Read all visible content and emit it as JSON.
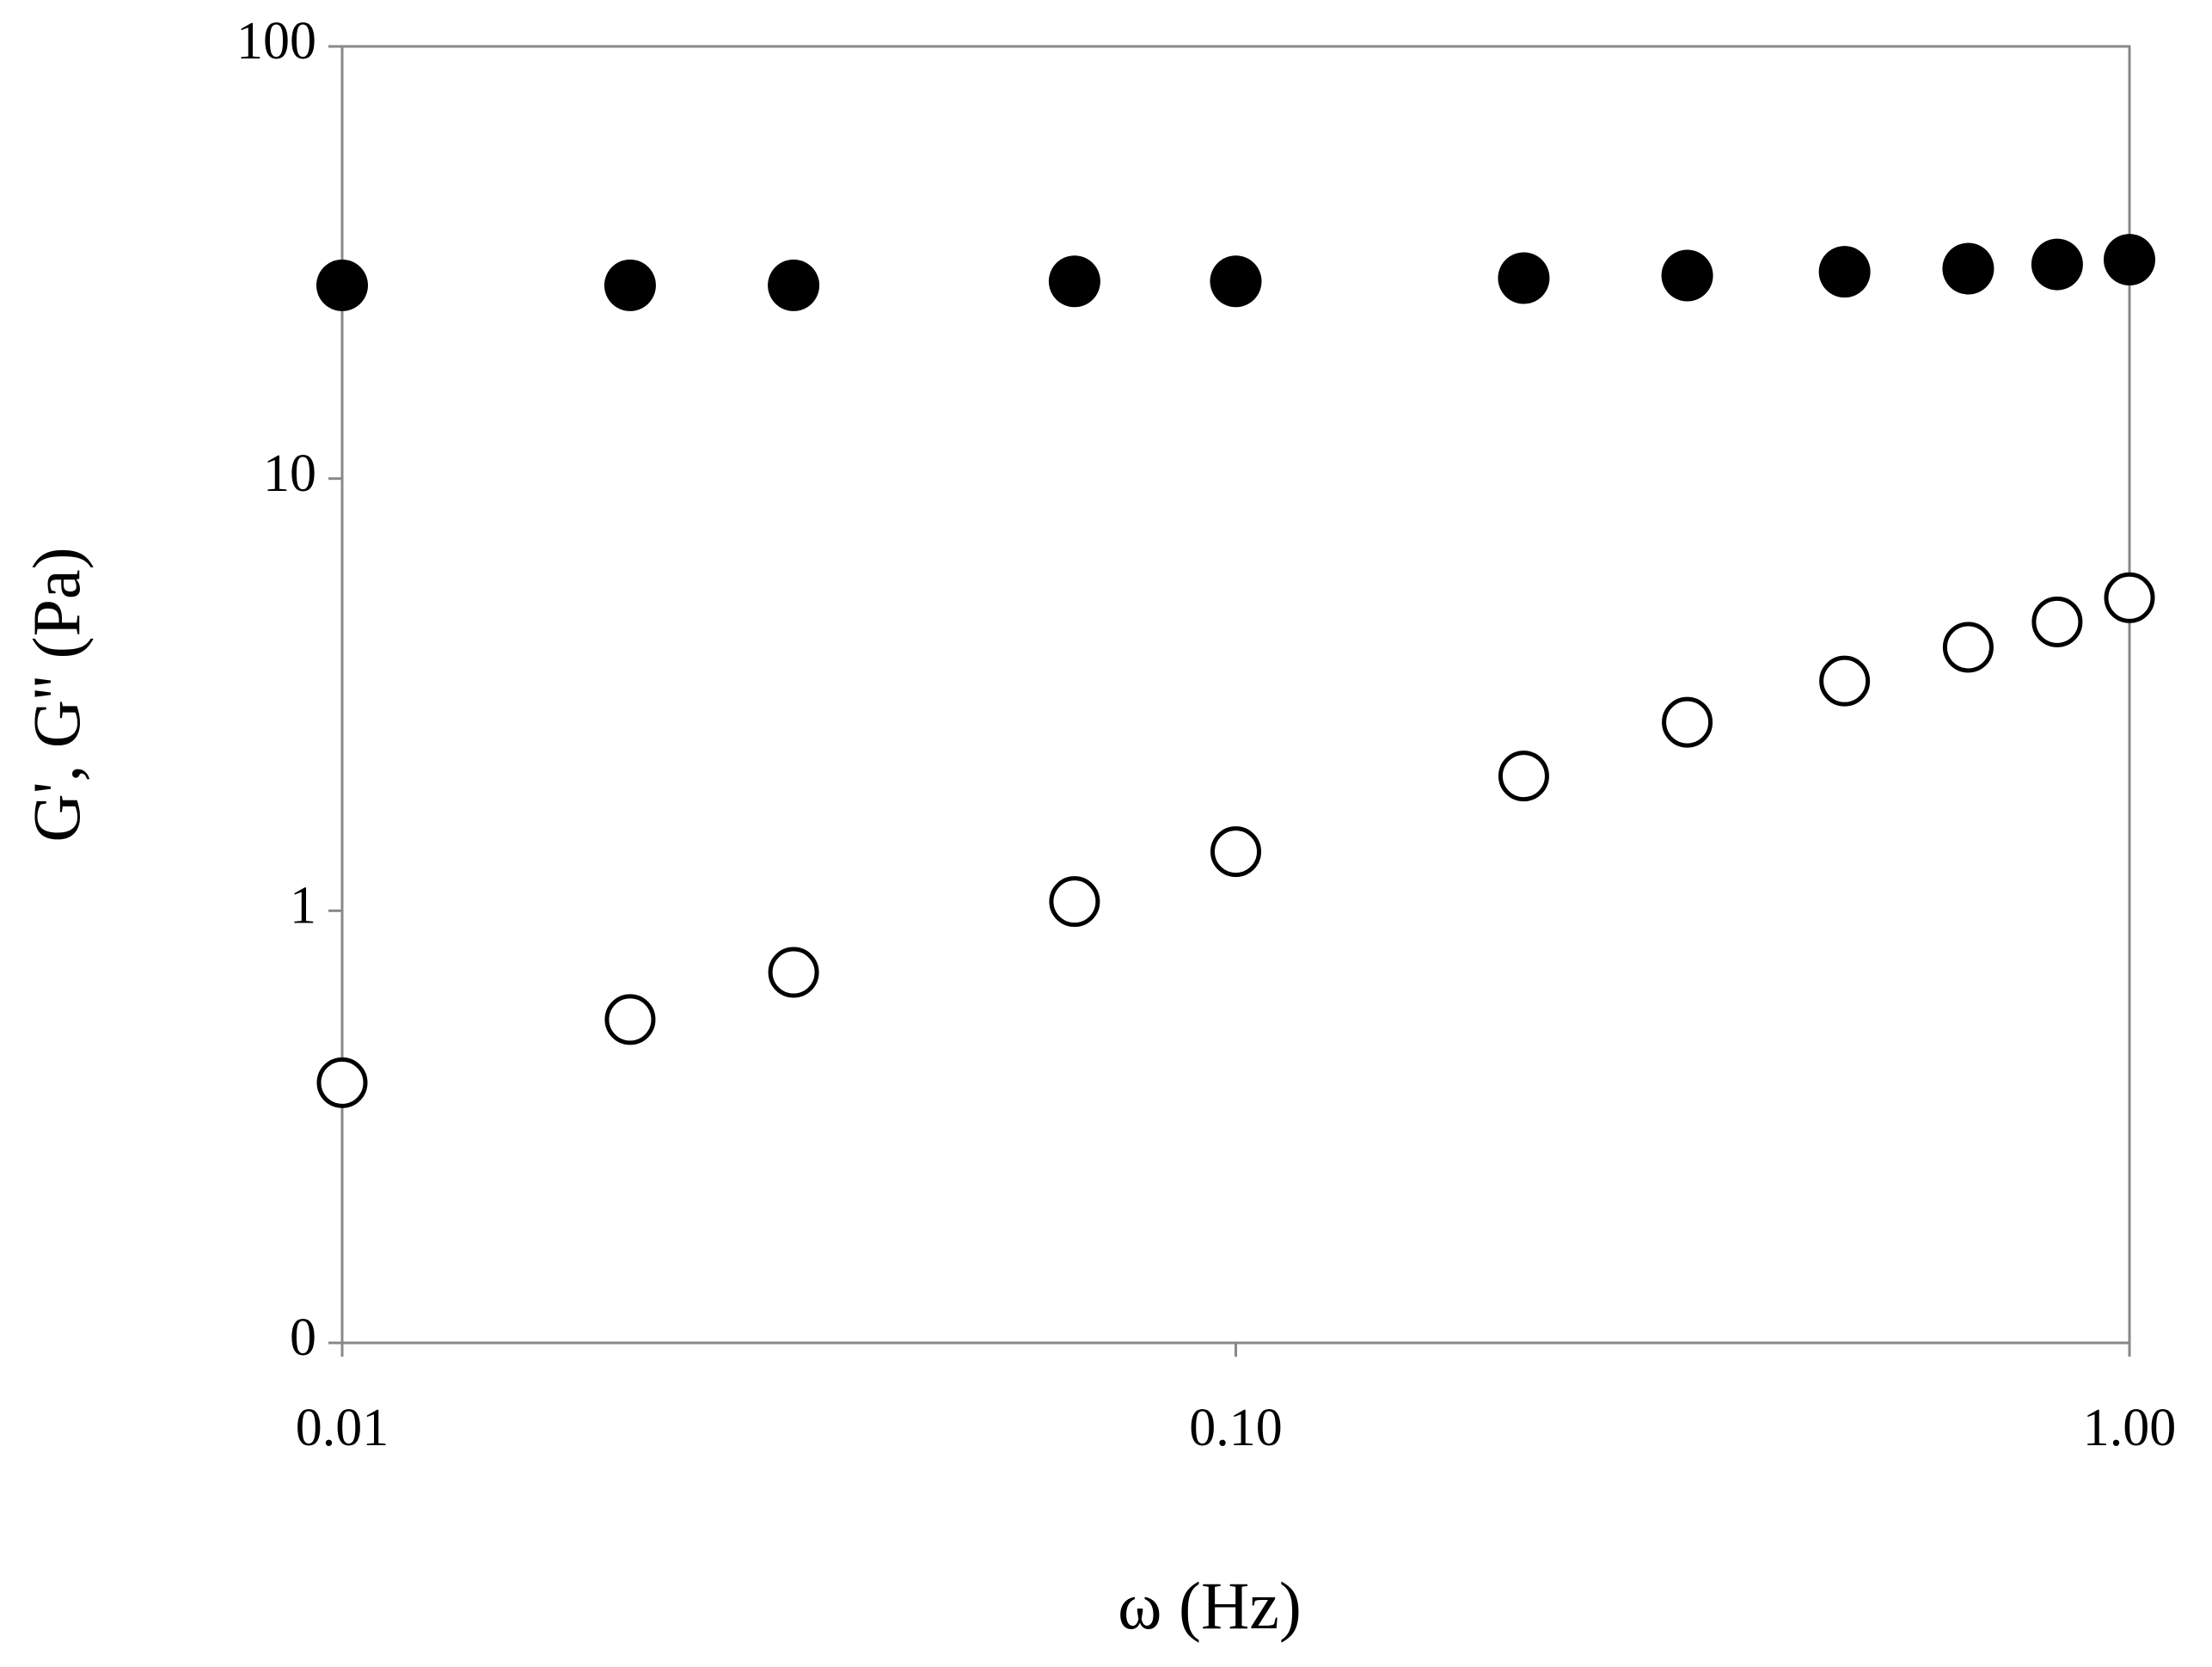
{
  "chart_data": {
    "type": "scatter",
    "x_label": "ω (Hz)",
    "y_label": "G', G'' (Pa)",
    "x": [
      0.01,
      0.021,
      0.032,
      0.066,
      0.1,
      0.21,
      0.32,
      0.48,
      0.66,
      0.83,
      1.0
    ],
    "series": [
      {
        "color": "#000000",
        "marker": "filled",
        "values": [
          28,
          28,
          28,
          28.6,
          28.6,
          29.1,
          29.5,
          30.1,
          30.6,
          31.3,
          32.1
        ]
      },
      {
        "color": "#000000",
        "marker": "open",
        "values": [
          0.4,
          0.56,
          0.72,
          1.05,
          1.37,
          2.05,
          2.73,
          3.4,
          4.07,
          4.66,
          5.3
        ]
      }
    ],
    "xlim": [
      0.01,
      1.0
    ],
    "ylim": [
      0.1,
      100
    ],
    "xticks": [
      {
        "value": 0.01,
        "label": "0.01"
      },
      {
        "value": 0.1,
        "label": "0.10"
      },
      {
        "value": 1.0,
        "label": "1.00"
      }
    ],
    "yticks": [
      {
        "value": 0.1,
        "label": "0"
      },
      1,
      10,
      100
    ],
    "xscale": "log",
    "yscale": "log",
    "grid": false
  }
}
